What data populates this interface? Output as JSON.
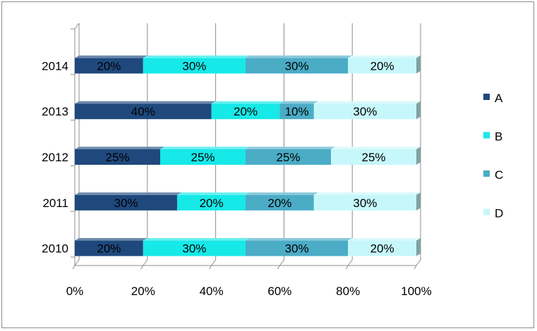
{
  "chart_data": {
    "type": "bar",
    "orientation": "horizontal",
    "stacked": "100%",
    "categories": [
      "2010",
      "2011",
      "2012",
      "2013",
      "2014"
    ],
    "series": [
      {
        "name": "A",
        "color": "#1f497d",
        "values": [
          20,
          30,
          25,
          40,
          20
        ],
        "labels": [
          "20%",
          "30%",
          "25%",
          "40%",
          "20%"
        ]
      },
      {
        "name": "B",
        "color": "#17e8e8",
        "values": [
          30,
          20,
          25,
          20,
          30
        ],
        "labels": [
          "30%",
          "20%",
          "25%",
          "20%",
          "30%"
        ]
      },
      {
        "name": "C",
        "color": "#4bacc6",
        "values": [
          30,
          20,
          25,
          10,
          30
        ],
        "labels": [
          "30%",
          "20%",
          "25%",
          "10%",
          "30%"
        ]
      },
      {
        "name": "D",
        "color": "#c6f7fa",
        "values": [
          20,
          30,
          25,
          30,
          20
        ],
        "labels": [
          "20%",
          "30%",
          "25%",
          "30%",
          "20%"
        ]
      }
    ],
    "xticks": [
      "0%",
      "20%",
      "40%",
      "60%",
      "80%",
      "100%"
    ],
    "xlim": [
      0,
      100
    ],
    "grid": true,
    "legend_position": "right",
    "style": "3d"
  }
}
